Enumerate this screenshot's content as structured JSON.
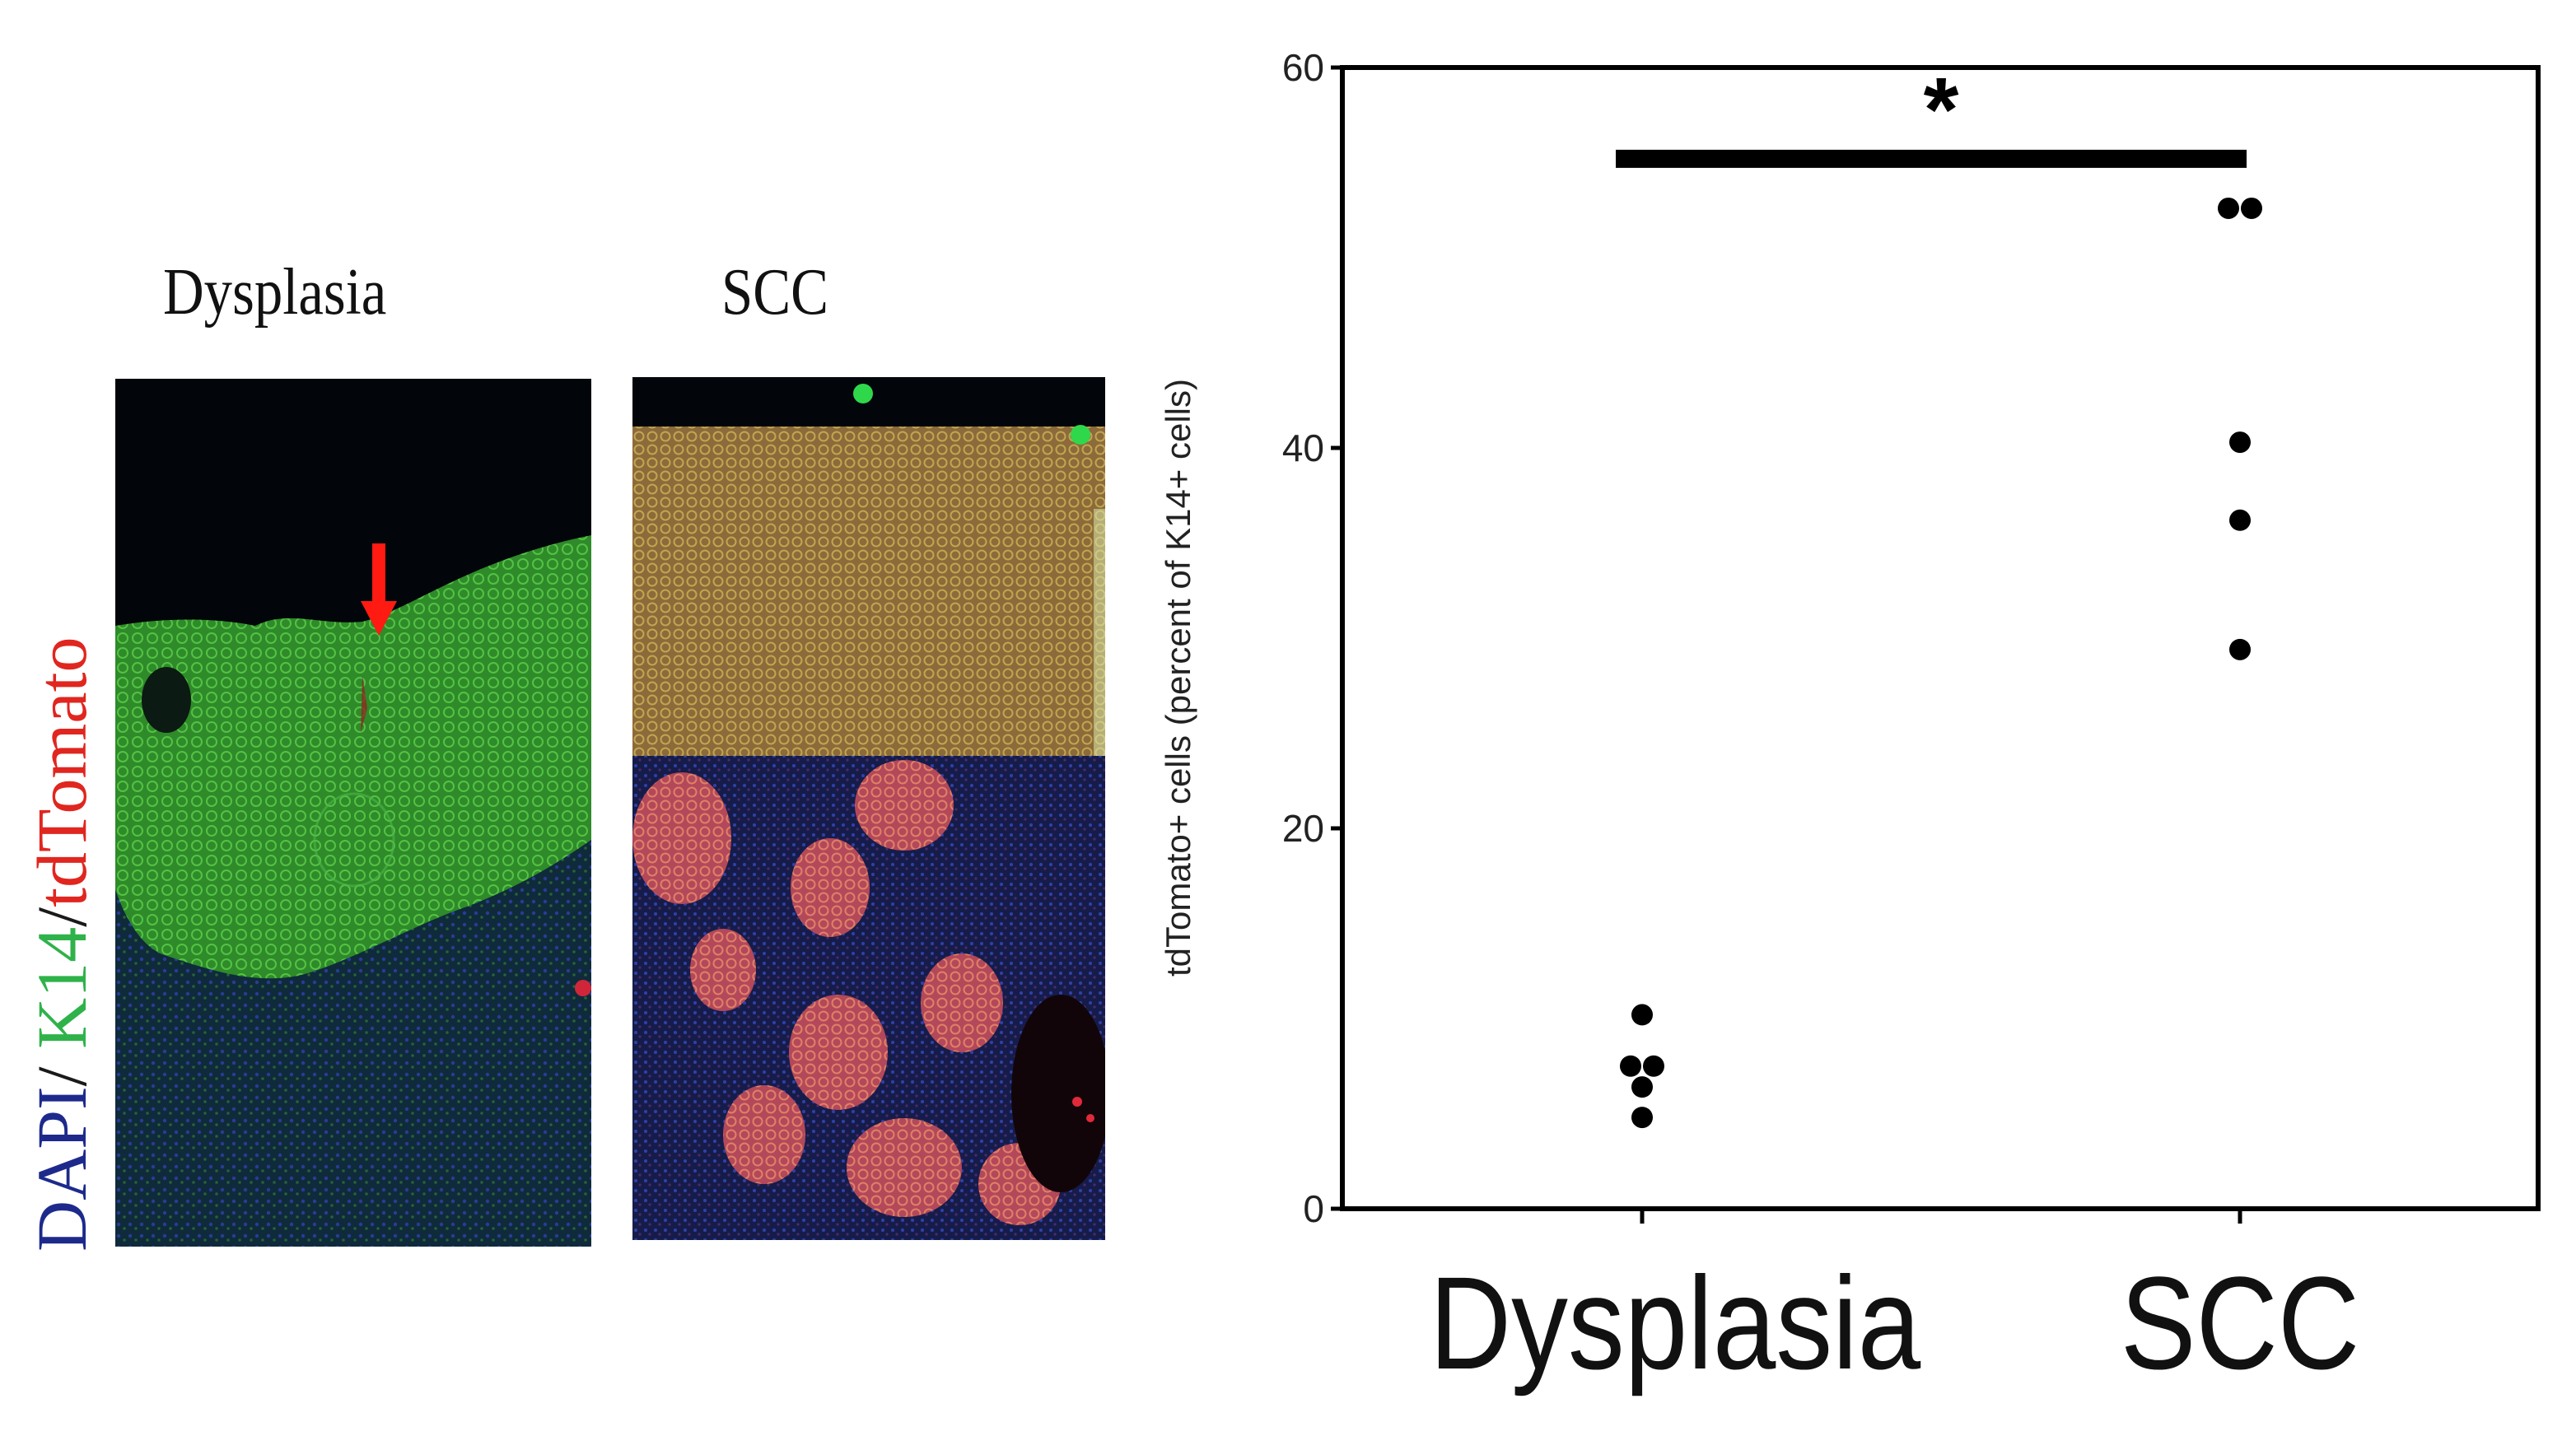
{
  "panels": {
    "left_title": "Dysplasia",
    "right_title": "SCC"
  },
  "stain_label": {
    "dapi": "DAPI",
    "sep1": "/ ",
    "k14": "K14",
    "sep2": "/",
    "tdtomato": "tdTomato"
  },
  "colors": {
    "dapi": "#1d2a8c",
    "k14": "#2fb24a",
    "tdtomato": "#e0261f",
    "points": "#000000"
  },
  "chart_data": {
    "type": "scatter",
    "categories": [
      "Dysplasia",
      "SCC"
    ],
    "ylabel": "tdTomato+ cells (percent of K14+ cells)",
    "ylim": [
      0,
      60
    ],
    "yticks": [
      0,
      20,
      40,
      60
    ],
    "grid": false,
    "series": [
      {
        "points": [
          {
            "category": "Dysplasia",
            "y": 10.2
          },
          {
            "category": "Dysplasia",
            "y": 7.5
          },
          {
            "category": "Dysplasia",
            "y": 7.5
          },
          {
            "category": "Dysplasia",
            "y": 6.4
          },
          {
            "category": "Dysplasia",
            "y": 4.8
          },
          {
            "category": "SCC",
            "y": 52.6
          },
          {
            "category": "SCC",
            "y": 52.6
          },
          {
            "category": "SCC",
            "y": 40.3
          },
          {
            "category": "SCC",
            "y": 36.2
          },
          {
            "category": "SCC",
            "y": 29.4
          }
        ]
      }
    ],
    "annotations": [
      {
        "text": "*",
        "type": "significance-bracket",
        "from": "Dysplasia",
        "to": "SCC",
        "y": 55.2
      }
    ]
  }
}
